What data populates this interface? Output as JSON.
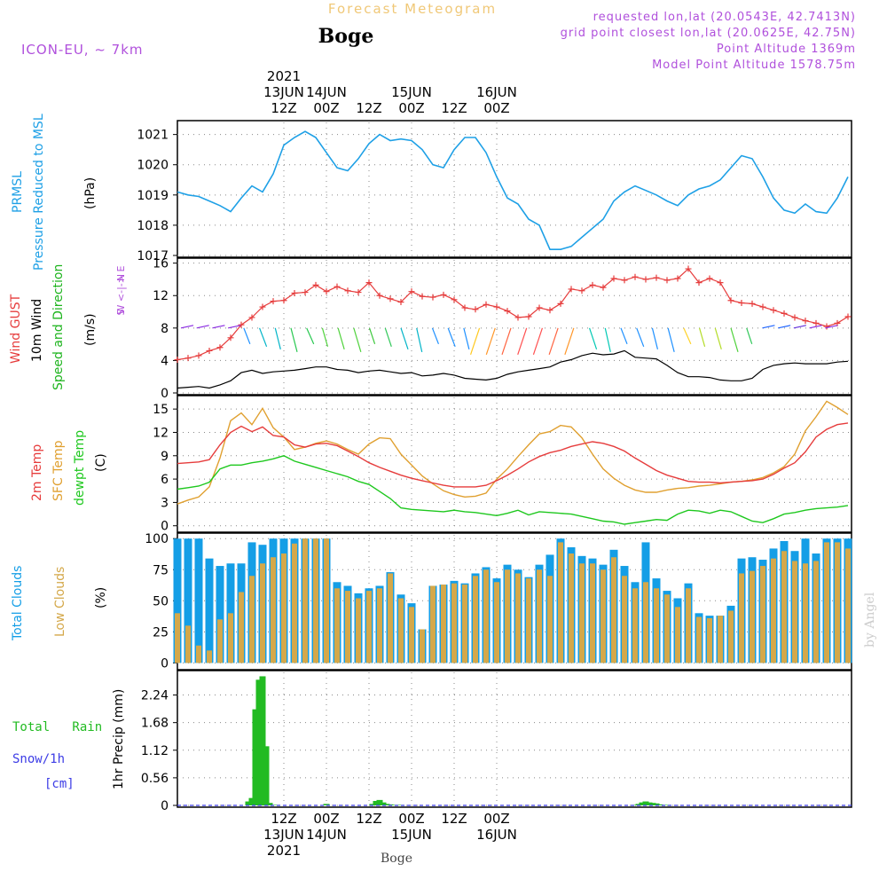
{
  "header": {
    "title": "Forecast Meteogram",
    "location": "Boge",
    "model": "ICON-EU, ~ 7km",
    "requested": "requested lon,lat (20.0543E, 42.7413N)",
    "gridpoint": "grid point closest lon,lat (20.0625E, 42.75N)",
    "altitude": "Point Altitude 1369m",
    "model_altitude": "Model Point Altitude 1578.75m"
  },
  "footer": {
    "location": "Boge",
    "credit": "by Angel"
  },
  "colors": {
    "pressure": "#1ea0e6",
    "gust": "#e63c3c",
    "wind_mean": "#000000",
    "wind_label": "#1eb41e",
    "temp2m": "#e63c3c",
    "sfc": "#e0a030",
    "dewpt": "#1ec81e",
    "total_clouds": "#149ee6",
    "low_clouds": "#d4a84a",
    "rain": "#22bb22",
    "snow": "#3c3ce6",
    "dir_label": "#b050dc",
    "header_purple": "#b050dc",
    "title_orange": "#f0c878"
  },
  "chart_data": [
    {
      "type": "line",
      "title": "",
      "ylabel": [
        "PRMSL",
        "Pressure Reduced to MSL",
        "(hPa)"
      ],
      "x_hours": [
        0,
        3,
        6,
        9,
        12,
        15,
        18,
        21,
        24,
        27,
        30,
        33,
        36,
        39,
        42,
        45,
        48,
        51,
        54,
        57,
        60,
        63,
        66,
        69,
        72,
        75,
        78,
        81,
        84,
        87,
        90,
        93,
        96,
        99,
        102,
        105,
        108,
        111,
        114,
        117,
        120,
        123,
        126,
        129,
        132,
        135,
        138,
        141,
        144,
        147,
        150,
        153,
        156,
        159,
        162,
        165,
        168,
        171,
        174,
        177,
        180,
        183,
        186,
        189
      ],
      "xlim": [
        0,
        190
      ],
      "ylim": [
        1017,
        1021.4
      ],
      "yticks": [
        1017,
        1018,
        1019,
        1020,
        1021
      ],
      "series": [
        {
          "key": "pressure",
          "values": [
            1019.1,
            1019.0,
            1018.95,
            1018.8,
            1018.65,
            1018.45,
            1018.9,
            1019.3,
            1019.1,
            1019.7,
            1020.65,
            1020.9,
            1021.1,
            1020.9,
            1020.4,
            1019.9,
            1019.8,
            1020.2,
            1020.7,
            1021.0,
            1020.8,
            1020.85,
            1020.8,
            1020.5,
            1020.0,
            1019.9,
            1020.5,
            1020.9,
            1020.9,
            1020.4,
            1019.6,
            1018.9,
            1018.7,
            1018.2,
            1018.0,
            1017.2,
            1017.2,
            1017.3,
            1017.6,
            1017.9,
            1018.2,
            1018.8,
            1019.1,
            1019.3,
            1019.15,
            1019.0,
            1018.8,
            1018.65,
            1019.0,
            1019.2,
            1019.3,
            1019.5,
            1019.9,
            1020.3,
            1020.2,
            1019.6,
            1018.9,
            1018.5,
            1018.4,
            1018.7,
            1018.45,
            1018.4,
            1018.9,
            1019.6
          ]
        }
      ]
    },
    {
      "type": "line",
      "title": "",
      "ylabel": [
        "Wind GUST",
        "10m Wind",
        "Speed and Direction",
        "(m/s)"
      ],
      "ylim": [
        0,
        16.4
      ],
      "yticks": [
        0,
        4,
        8,
        12,
        16
      ],
      "series": [
        {
          "key": "gust",
          "values": [
            4.1,
            4.3,
            4.6,
            5.2,
            5.6,
            6.8,
            8.4,
            9.3,
            10.6,
            11.3,
            11.4,
            12.3,
            12.4,
            13.3,
            12.5,
            13.1,
            12.6,
            12.4,
            13.6,
            12.0,
            11.6,
            11.2,
            12.5,
            11.9,
            11.8,
            12.1,
            11.5,
            10.5,
            10.3,
            10.9,
            10.6,
            10.1,
            9.3,
            9.4,
            10.5,
            10.2,
            11.0,
            12.8,
            12.6,
            13.3,
            13.0,
            14.1,
            13.9,
            14.3,
            14.0,
            14.2,
            13.9,
            14.1,
            15.3,
            13.6,
            14.1,
            13.6,
            11.4,
            11.1,
            11.0,
            10.6,
            10.2,
            9.8,
            9.3,
            8.9,
            8.6,
            8.2,
            8.6,
            9.4
          ]
        },
        {
          "key": "wind_mean",
          "values": [
            0.6,
            0.7,
            0.8,
            0.6,
            1.0,
            1.5,
            2.5,
            2.8,
            2.4,
            2.6,
            2.7,
            2.8,
            3.0,
            3.2,
            3.2,
            2.9,
            2.8,
            2.5,
            2.7,
            2.8,
            2.6,
            2.4,
            2.5,
            2.1,
            2.2,
            2.4,
            2.2,
            1.8,
            1.7,
            1.6,
            1.8,
            2.3,
            2.6,
            2.8,
            3.0,
            3.2,
            3.8,
            4.1,
            4.6,
            4.9,
            4.7,
            4.8,
            5.2,
            4.4,
            4.3,
            4.2,
            3.4,
            2.5,
            2.0,
            2.0,
            1.9,
            1.6,
            1.5,
            1.5,
            1.8,
            2.9,
            3.4,
            3.6,
            3.7,
            3.6,
            3.6,
            3.6,
            3.8,
            3.9
          ]
        }
      ],
      "direction_legend": [
        "N",
        "W <-|-> E",
        "S"
      ]
    },
    {
      "type": "line",
      "title": "",
      "ylabel": [
        "2m Temp",
        "SFC Temp",
        "dewpt Temp",
        "(C)"
      ],
      "ylim": [
        -0.6,
        16.5
      ],
      "yticks": [
        0,
        3,
        6,
        9,
        12,
        15
      ],
      "series": [
        {
          "key": "temp2m",
          "values": [
            8.0,
            8.1,
            8.2,
            8.5,
            10.4,
            12.0,
            12.8,
            12.1,
            12.7,
            11.6,
            11.4,
            10.4,
            10.1,
            10.5,
            10.6,
            10.3,
            9.6,
            8.9,
            8.1,
            7.5,
            7.0,
            6.5,
            6.1,
            5.8,
            5.5,
            5.2,
            5.0,
            5.0,
            5.0,
            5.2,
            5.8,
            6.5,
            7.3,
            8.2,
            8.9,
            9.4,
            9.7,
            10.2,
            10.5,
            10.8,
            10.6,
            10.2,
            9.6,
            8.7,
            7.9,
            7.1,
            6.5,
            6.1,
            5.7,
            5.6,
            5.6,
            5.5,
            5.6,
            5.7,
            5.8,
            6.0,
            6.6,
            7.4,
            8.1,
            9.5,
            11.4,
            12.4,
            13.0,
            13.2
          ]
        },
        {
          "key": "sfc",
          "values": [
            2.8,
            3.3,
            3.7,
            5.0,
            8.7,
            13.5,
            14.5,
            13.0,
            15.1,
            12.6,
            11.4,
            9.8,
            10.1,
            10.6,
            10.9,
            10.5,
            9.8,
            9.2,
            10.5,
            11.3,
            11.2,
            9.2,
            7.8,
            6.4,
            5.4,
            4.5,
            4.0,
            3.7,
            3.8,
            4.2,
            6.0,
            7.3,
            8.9,
            10.4,
            11.8,
            12.1,
            12.9,
            12.7,
            11.3,
            9.2,
            7.3,
            6.1,
            5.2,
            4.6,
            4.3,
            4.3,
            4.6,
            4.8,
            4.9,
            5.1,
            5.2,
            5.4,
            5.6,
            5.7,
            5.9,
            6.2,
            6.8,
            7.6,
            9.2,
            12.2,
            14.0,
            16.0,
            15.2,
            14.3
          ]
        },
        {
          "key": "dewpt",
          "values": [
            4.7,
            4.9,
            5.1,
            5.6,
            7.3,
            7.8,
            7.8,
            8.1,
            8.3,
            8.6,
            9.0,
            8.3,
            7.9,
            7.5,
            7.1,
            6.7,
            6.3,
            5.7,
            5.3,
            4.4,
            3.5,
            2.3,
            2.1,
            2.0,
            1.9,
            1.8,
            2.0,
            1.8,
            1.7,
            1.5,
            1.3,
            1.6,
            2.0,
            1.4,
            1.8,
            1.7,
            1.6,
            1.5,
            1.2,
            0.9,
            0.6,
            0.5,
            0.2,
            0.4,
            0.6,
            0.8,
            0.7,
            1.5,
            2.0,
            1.9,
            1.6,
            2.0,
            1.8,
            1.2,
            0.6,
            0.4,
            0.9,
            1.5,
            1.7,
            2.0,
            2.2,
            2.3,
            2.4,
            2.6
          ]
        }
      ]
    },
    {
      "type": "bar",
      "title": "",
      "ylabel": [
        "Total Clouds",
        "Low Clouds",
        "(%)"
      ],
      "ylim": [
        -4,
        103
      ],
      "yticks": [
        0,
        25,
        50,
        75,
        100
      ],
      "series": [
        {
          "key": "total_clouds",
          "values": [
            100,
            100,
            100,
            84,
            78,
            80,
            80,
            97,
            95,
            100,
            100,
            100,
            100,
            100,
            100,
            65,
            62,
            56,
            60,
            62,
            73,
            55,
            48,
            27,
            62,
            63,
            66,
            64,
            72,
            77,
            68,
            79,
            75,
            69,
            79,
            87,
            100,
            93,
            86,
            84,
            79,
            91,
            78,
            65,
            97,
            68,
            58,
            52,
            64,
            40,
            38,
            38,
            46,
            84,
            85,
            83,
            92,
            98,
            90,
            100,
            88,
            100,
            100,
            100
          ]
        },
        {
          "key": "low_clouds",
          "values": [
            40,
            30,
            14,
            10,
            35,
            40,
            57,
            70,
            80,
            85,
            88,
            96,
            100,
            100,
            100,
            60,
            58,
            52,
            58,
            60,
            72,
            52,
            45,
            27,
            62,
            63,
            64,
            63,
            70,
            75,
            65,
            75,
            72,
            68,
            75,
            70,
            97,
            88,
            80,
            80,
            75,
            85,
            70,
            60,
            65,
            60,
            55,
            45,
            60,
            37,
            36,
            38,
            42,
            72,
            74,
            78,
            84,
            90,
            82,
            80,
            82,
            97,
            97,
            92
          ]
        }
      ]
    },
    {
      "type": "bar",
      "title": "",
      "ylabel": [
        "Total   Rain",
        "Snow/1h",
        "[cm]",
        "1hr Precip (mm)"
      ],
      "ylim": [
        0,
        2.7
      ],
      "yticks": [
        "0",
        "0.56",
        "1.12",
        "1.68",
        "2.24"
      ],
      "x_hours": [
        20,
        21,
        22,
        23,
        24,
        25,
        26,
        27,
        28,
        42,
        55,
        56,
        57,
        58,
        59,
        60,
        61,
        62,
        63,
        129,
        130,
        131,
        132,
        133,
        134,
        135,
        136,
        137,
        138
      ],
      "series": [
        {
          "key": "rain",
          "values": [
            0.08,
            0.15,
            1.95,
            2.55,
            2.62,
            1.2,
            0.05,
            0.01,
            0.01,
            0.03,
            0.03,
            0.09,
            0.11,
            0.06,
            0.03,
            0.02,
            0.01,
            0.01,
            0.01,
            0.01,
            0.03,
            0.06,
            0.08,
            0.06,
            0.05,
            0.04,
            0.02,
            0.01,
            0.01
          ]
        }
      ]
    }
  ],
  "x_axis": {
    "top_labels": [
      {
        "h": 30,
        "lines": [
          "2021",
          "13JUN",
          "12Z"
        ]
      },
      {
        "h": 42,
        "lines": [
          "14JUN",
          "00Z"
        ]
      },
      {
        "h": 54,
        "lines": [
          "12Z"
        ]
      },
      {
        "h": 66,
        "lines": [
          "15JUN",
          "00Z"
        ]
      },
      {
        "h": 78,
        "lines": [
          "12Z"
        ]
      },
      {
        "h": 90,
        "lines": [
          "16JUN",
          "00Z"
        ]
      }
    ],
    "bottom_labels": [
      {
        "h": 30,
        "lines": [
          "12Z",
          "13JUN",
          "2021"
        ]
      },
      {
        "h": 42,
        "lines": [
          "00Z",
          "14JUN"
        ]
      },
      {
        "h": 54,
        "lines": [
          "12Z"
        ]
      },
      {
        "h": 66,
        "lines": [
          "00Z",
          "15JUN"
        ]
      },
      {
        "h": 78,
        "lines": [
          "12Z"
        ]
      },
      {
        "h": 90,
        "lines": [
          "00Z",
          "16JUN"
        ]
      }
    ]
  }
}
